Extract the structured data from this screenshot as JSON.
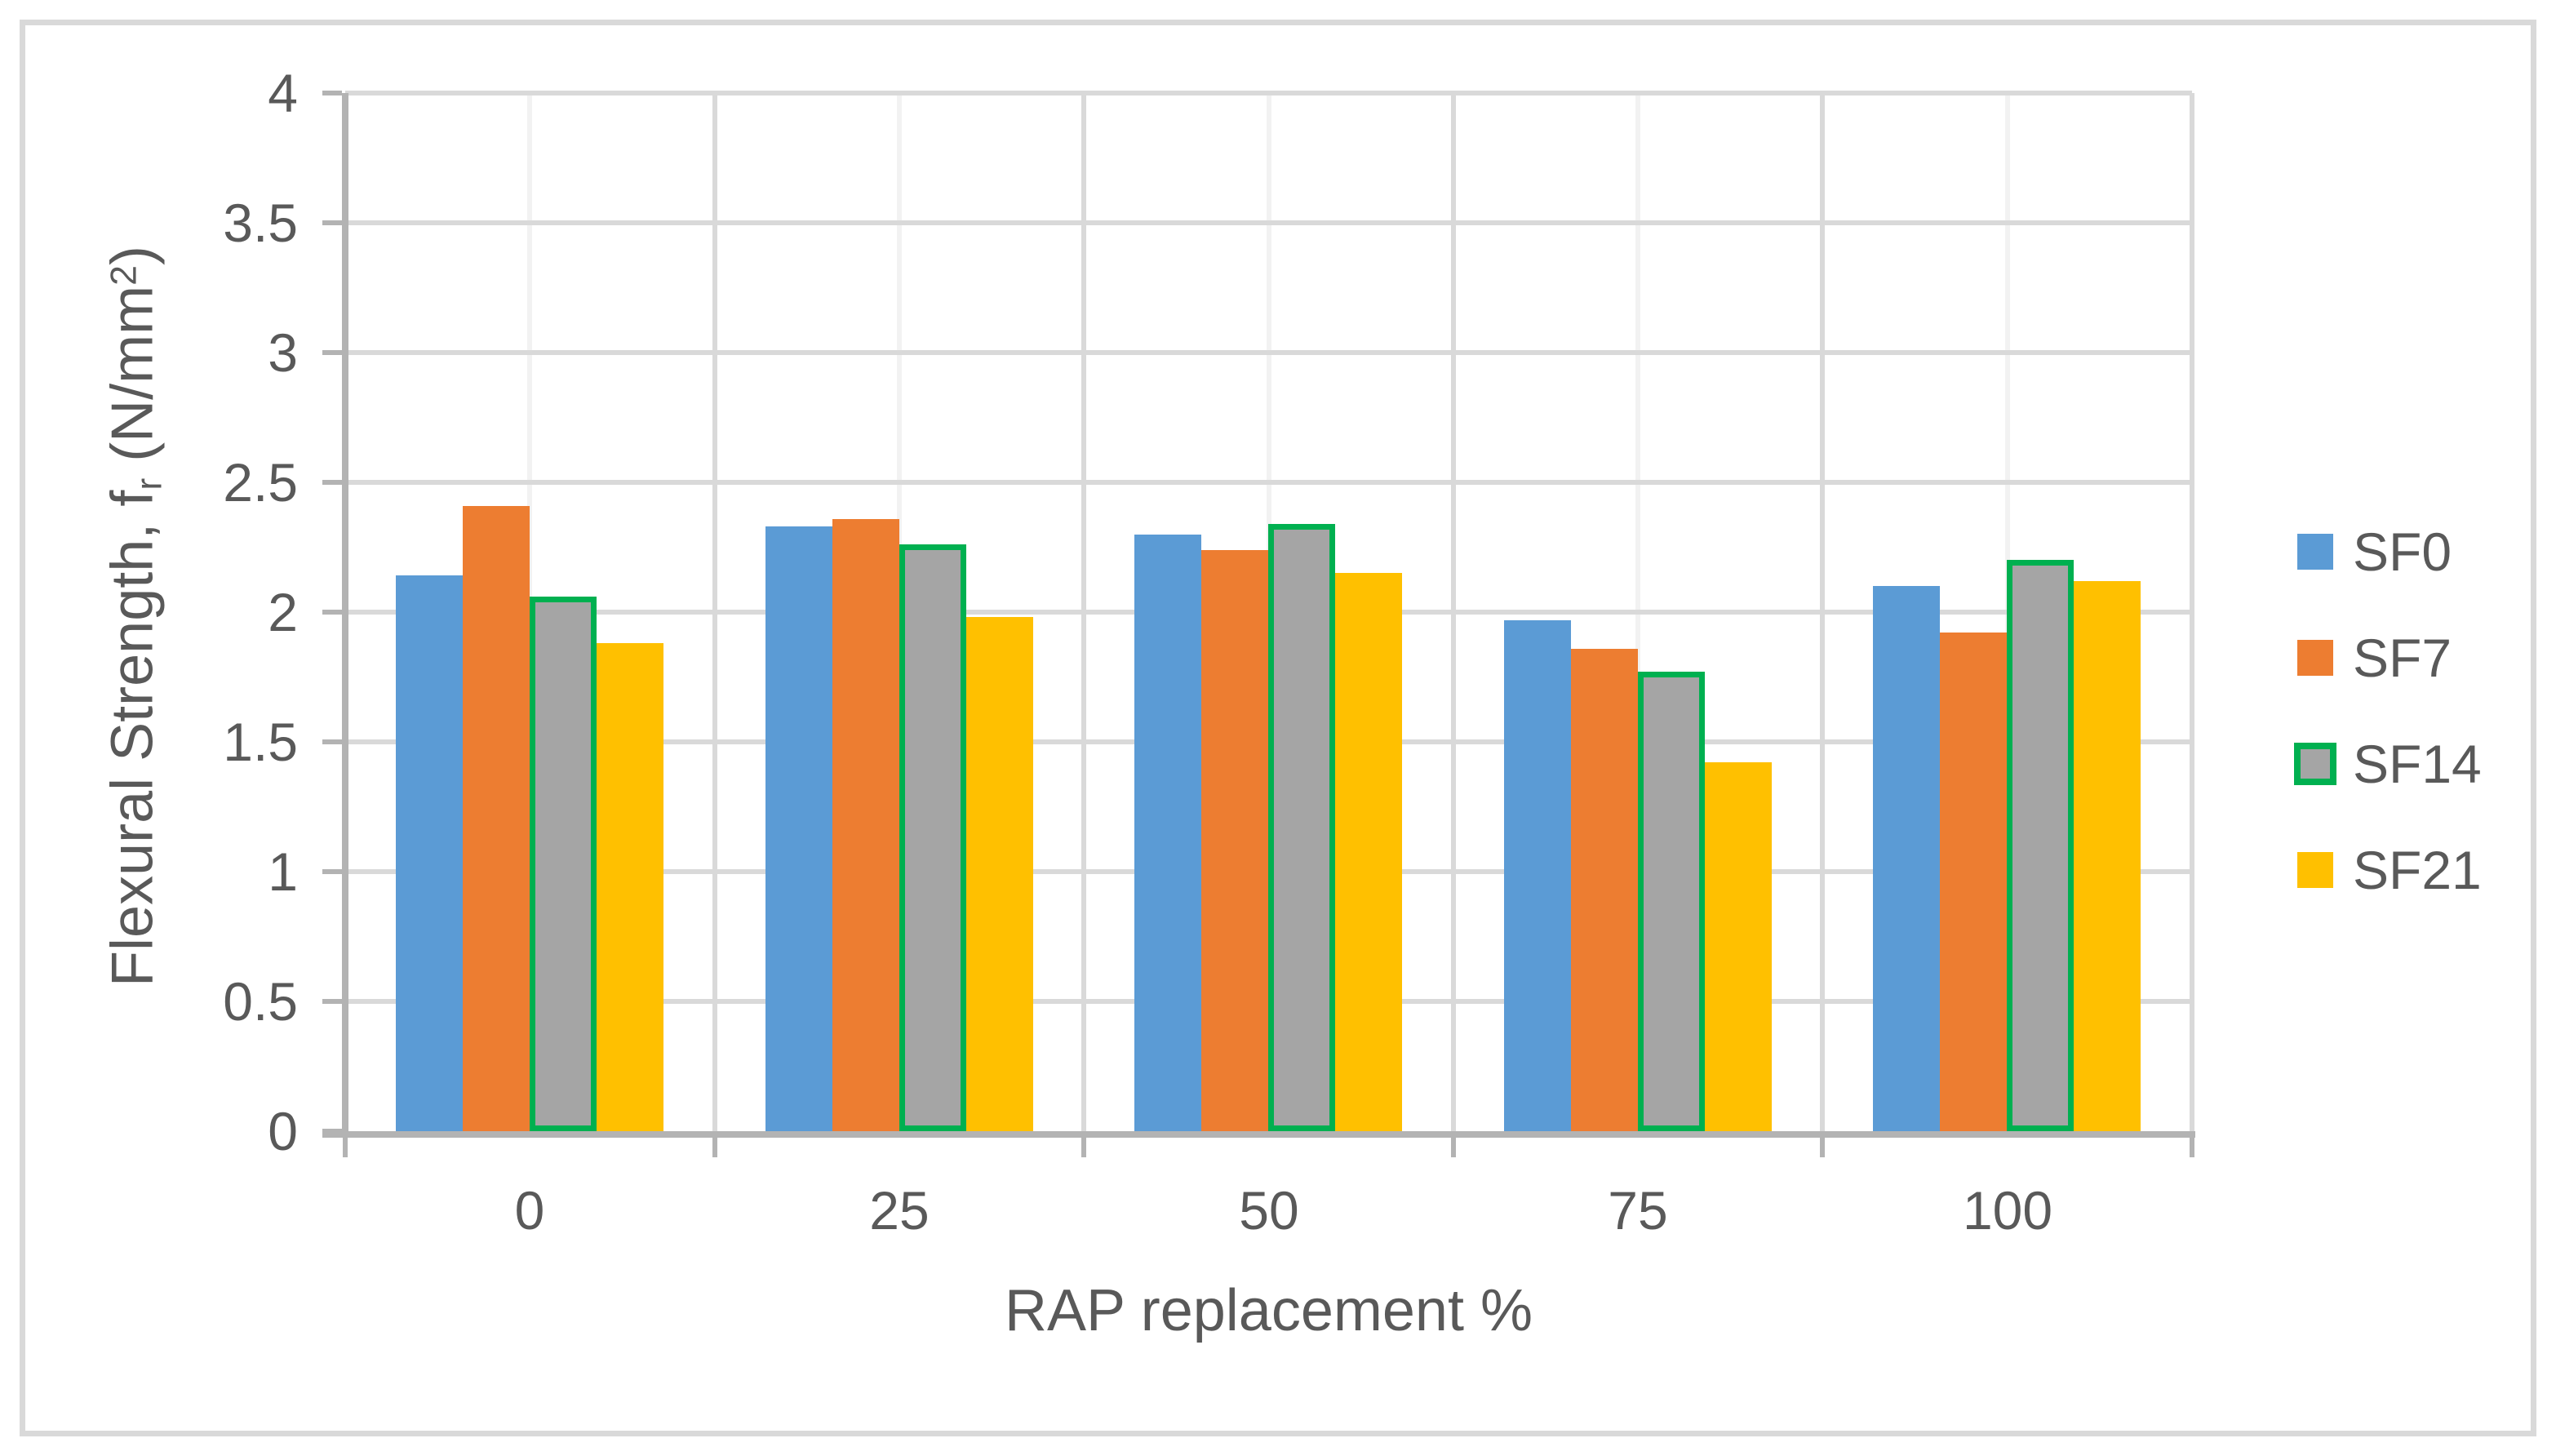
{
  "chart_data": {
    "type": "bar",
    "title": "",
    "xlabel": "RAP replacement %",
    "ylabel": "Flexural Strength, fr (N/mm2)",
    "ylabel_parts": {
      "before_sub": "Flexural Strength, f",
      "sub": "r",
      "mid": " (N/mm",
      "sup": "2",
      "after": ")"
    },
    "categories": [
      "0",
      "25",
      "50",
      "75",
      "100"
    ],
    "series": [
      {
        "name": "SF0",
        "color": "#5B9BD5",
        "values": [
          2.14,
          2.33,
          2.3,
          1.97,
          2.1
        ]
      },
      {
        "name": "SF7",
        "color": "#ED7D31",
        "values": [
          2.41,
          2.36,
          2.24,
          1.86,
          1.92
        ]
      },
      {
        "name": "SF14",
        "color": "#A5A5A5",
        "border_color": "#00B050",
        "values": [
          2.06,
          2.26,
          2.34,
          1.77,
          2.2
        ]
      },
      {
        "name": "SF21",
        "color": "#FFC000",
        "values": [
          1.88,
          1.98,
          2.15,
          1.42,
          2.12
        ]
      }
    ],
    "y_axis": {
      "min": 0,
      "max": 4,
      "step": 0.5,
      "tick_labels": [
        "0",
        "0.5",
        "1",
        "1.5",
        "2",
        "2.5",
        "3",
        "3.5",
        "4"
      ]
    },
    "x_axis": {
      "tick_labels": [
        "0",
        "25",
        "50",
        "75",
        "100"
      ]
    },
    "legend": {
      "position": "right",
      "entries": [
        "SF0",
        "SF7",
        "SF14",
        "SF21"
      ]
    },
    "grid": {
      "h_major": true,
      "v_major": true,
      "v_minor": true
    }
  },
  "colors": {
    "grid_major": "#D9D9D9",
    "grid_minor": "#F2F2F2",
    "axis_line": "#B3B3B3",
    "text": "#595959",
    "frame_border": "#D9D9D9",
    "background": "#FFFFFF"
  }
}
